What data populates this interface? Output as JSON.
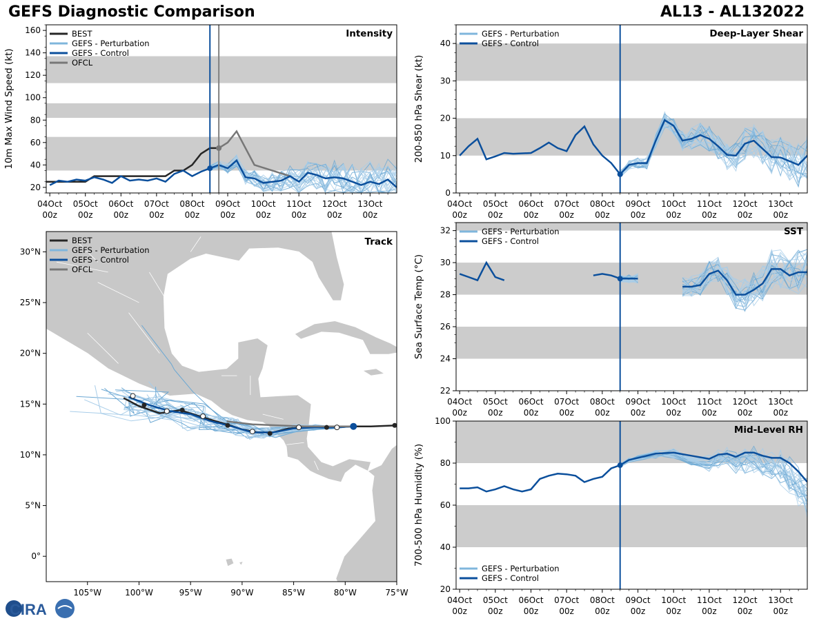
{
  "header": {
    "title": "GEFS Diagnostic Comparison",
    "storm_id": "AL13 - AL132022"
  },
  "logo": {
    "text": "CIRA"
  },
  "colors": {
    "best": "#262626",
    "perturbation": "#7fb6dc",
    "control": "#0b4f9c",
    "ofcl": "#777777",
    "band": "#cccccc",
    "land": "#c8c8c8",
    "vline_init": "#0b4f9c",
    "vline_ofcl": "#808080"
  },
  "time_axis": {
    "ticks": [
      "04Oct\n00z",
      "05Oct\n00z",
      "06Oct\n00z",
      "07Oct\n00z",
      "08Oct\n00z",
      "09Oct\n00z",
      "10Oct\n00z",
      "11Oct\n00z",
      "12Oct\n00z",
      "13Oct\n00z"
    ],
    "range_days": [
      -0.1,
      9.75
    ],
    "init_day": 4.5,
    "ofcl_day": 4.75
  },
  "chart_data": [
    {
      "id": "intensity",
      "type": "line",
      "title": "Intensity",
      "ylabel": "10m Max Wind Speed (kt)",
      "ylim": [
        15,
        165
      ],
      "yticks": [
        20,
        40,
        60,
        80,
        100,
        120,
        140,
        160
      ],
      "bands": [
        [
          35,
          65
        ],
        [
          82,
          95
        ],
        [
          113,
          137
        ]
      ],
      "legend": [
        "BEST",
        "GEFS - Perturbation",
        "GEFS - Control",
        "OFCL"
      ],
      "series": [
        {
          "name": "BEST",
          "x": [
            -0.1,
            0.5,
            1.0,
            1.25,
            1.5,
            2.0,
            2.5,
            3.0,
            3.25,
            3.5,
            3.75,
            4.0,
            4.25,
            4.5,
            4.75
          ],
          "y": [
            25,
            25,
            25,
            30,
            30,
            30,
            30,
            30,
            30,
            35,
            35,
            40,
            50,
            55,
            55
          ]
        },
        {
          "name": "OFCL",
          "x": [
            4.75,
            5.0,
            5.25,
            5.75,
            6.75
          ],
          "y": [
            55,
            60,
            70,
            40,
            30
          ]
        },
        {
          "name": "GEFS - Control",
          "x": [
            0.0,
            0.25,
            0.5,
            0.75,
            1.0,
            1.25,
            1.5,
            1.75,
            2.0,
            2.25,
            2.5,
            2.75,
            3.0,
            3.25,
            3.5,
            3.75,
            4.0,
            4.25,
            4.5,
            4.75,
            5.0,
            5.25,
            5.5,
            5.75,
            6.0,
            6.25,
            6.5,
            6.75,
            7.0,
            7.25,
            7.5,
            7.75,
            8.0,
            8.25,
            8.5,
            8.75,
            9.0,
            9.25,
            9.5,
            9.75
          ],
          "y": [
            22,
            26,
            25,
            27,
            26,
            29,
            27,
            24,
            30,
            26,
            27,
            26,
            28,
            25,
            32,
            35,
            30,
            34,
            37,
            40,
            37,
            44,
            29,
            28,
            24,
            25,
            26,
            30,
            25,
            33,
            31,
            28,
            29,
            28,
            25,
            22,
            25,
            23,
            27,
            20
          ]
        }
      ],
      "points": [
        {
          "series": "GEFS - Control",
          "x": 4.5,
          "y": 37
        },
        {
          "series": "OFCL",
          "x": 4.75,
          "y": 55
        }
      ]
    },
    {
      "id": "shear",
      "type": "line",
      "title": "Deep-Layer Shear",
      "ylabel": "200-850 hPa Shear (kt)",
      "ylim": [
        0,
        45
      ],
      "yticks": [
        0,
        10,
        20,
        30,
        40
      ],
      "bands": [
        [
          10,
          20
        ],
        [
          30,
          40
        ]
      ],
      "legend": [
        "GEFS - Perturbation",
        "GEFS - Control"
      ],
      "series": [
        {
          "name": "GEFS - Control",
          "x": [
            0.0,
            0.25,
            0.5,
            0.75,
            1.0,
            1.25,
            1.5,
            2.0,
            2.25,
            2.5,
            2.75,
            3.0,
            3.25,
            3.5,
            3.75,
            4.0,
            4.25,
            4.5,
            4.75,
            5.0,
            5.25,
            5.5,
            5.75,
            6.0,
            6.25,
            6.5,
            6.75,
            7.0,
            7.25,
            7.5,
            7.75,
            8.0,
            8.25,
            8.5,
            8.75,
            9.0,
            9.25,
            9.5,
            9.75
          ],
          "y": [
            10,
            12.5,
            14.5,
            9,
            9.8,
            10.7,
            10.5,
            10.7,
            12,
            13.5,
            12,
            11.2,
            15.5,
            17.8,
            13,
            10,
            8,
            5,
            7.5,
            8,
            8,
            14,
            19.5,
            18,
            14,
            14.5,
            15.5,
            14.5,
            12.5,
            10.2,
            10,
            13.2,
            14,
            11.8,
            9.6,
            9.5,
            8.5,
            7.5,
            10
          ]
        }
      ],
      "points": [
        {
          "series": "GEFS - Control",
          "x": 4.5,
          "y": 5
        }
      ]
    },
    {
      "id": "sst",
      "type": "line",
      "title": "SST",
      "ylabel": "Sea Surface Temp (°C)",
      "ylim": [
        22,
        32.5
      ],
      "yticks": [
        22,
        24,
        26,
        28,
        30,
        32
      ],
      "bands": [
        [
          24,
          26
        ],
        [
          28,
          30
        ],
        [
          32,
          32.5
        ]
      ],
      "legend": [
        "GEFS - Perturbation",
        "GEFS - Control"
      ],
      "series": [
        {
          "name": "GEFS - Control A",
          "x": [
            0.0,
            0.25,
            0.5,
            0.75,
            1.0,
            1.25
          ],
          "y": [
            29.3,
            29.1,
            28.9,
            30.0,
            29.1,
            28.9
          ]
        },
        {
          "name": "GEFS - Control B",
          "x": [
            3.75,
            4.0,
            4.25,
            4.5,
            4.75,
            5.0
          ],
          "y": [
            29.2,
            29.3,
            29.2,
            29.0,
            29.0,
            29.0
          ]
        },
        {
          "name": "GEFS - Control C",
          "x": [
            6.25,
            6.5,
            6.75,
            7.0,
            7.25,
            7.5,
            7.75,
            8.0,
            8.25,
            8.5,
            8.75,
            9.0,
            9.25,
            9.5,
            9.75
          ],
          "y": [
            28.5,
            28.5,
            28.6,
            29.3,
            29.5,
            28.9,
            28.0,
            28.0,
            28.3,
            28.7,
            29.6,
            29.6,
            29.2,
            29.4,
            29.4
          ]
        }
      ],
      "points": [
        {
          "series": "GEFS - Control",
          "x": 4.5,
          "y": 29.0
        }
      ]
    },
    {
      "id": "rh",
      "type": "line",
      "title": "Mid-Level RH",
      "ylabel": "700-500 hPa Humidity (%)",
      "ylim": [
        20,
        100
      ],
      "yticks": [
        20,
        40,
        60,
        80,
        100
      ],
      "bands": [
        [
          40,
          60
        ],
        [
          80,
          100
        ]
      ],
      "legend": [
        "GEFS - Perturbation",
        "GEFS - Control"
      ],
      "series": [
        {
          "name": "GEFS - Control",
          "x": [
            0.0,
            0.25,
            0.5,
            0.75,
            1.0,
            1.25,
            1.5,
            1.75,
            2.0,
            2.25,
            2.5,
            2.75,
            3.0,
            3.25,
            3.5,
            3.75,
            4.0,
            4.25,
            4.5,
            4.75,
            5.0,
            5.5,
            6.0,
            6.5,
            7.0,
            7.25,
            7.5,
            7.75,
            8.0,
            8.25,
            8.5,
            8.75,
            9.0,
            9.25,
            9.5,
            9.75
          ],
          "y": [
            68,
            68,
            68.5,
            66.5,
            67.5,
            69,
            67.5,
            66.5,
            67.5,
            72.5,
            74,
            75,
            74.7,
            74,
            71,
            72.5,
            73.5,
            77.5,
            79,
            81.5,
            82.5,
            84.5,
            85,
            83.5,
            82,
            84,
            84.5,
            83,
            85,
            85,
            83.5,
            82.5,
            82.5,
            80,
            76,
            71
          ]
        }
      ],
      "points": [
        {
          "series": "GEFS - Control",
          "x": 4.5,
          "y": 79
        }
      ]
    },
    {
      "id": "track",
      "type": "scatter",
      "title": "Track",
      "xlim": [
        -109,
        -75
      ],
      "ylim": [
        -2.5,
        32
      ],
      "xticks": [
        -105,
        -100,
        -95,
        -90,
        -85,
        -80,
        -75
      ],
      "xtick_labels": [
        "105°W",
        "100°W",
        "95°W",
        "90°W",
        "85°W",
        "80°W",
        "75°W"
      ],
      "yticks": [
        0,
        5,
        10,
        15,
        20,
        25,
        30
      ],
      "ytick_labels": [
        "0°",
        "5°N",
        "10°N",
        "15°N",
        "20°N",
        "25°N",
        "30°N"
      ],
      "legend": [
        "BEST",
        "GEFS - Perturbation",
        "GEFS - Control",
        "OFCL"
      ],
      "series": [
        {
          "name": "BEST",
          "lon": [
            -75.0,
            -77.5,
            -79.2,
            -81.5,
            -84.0,
            -85.5,
            -87.0,
            -88.5,
            -90.0,
            -91.5,
            -93.5,
            -96,
            -98,
            -100,
            -101.5
          ],
          "lat": [
            12.9,
            12.8,
            12.8,
            12.7,
            12.7,
            12.6,
            12.2,
            12.2,
            12.5,
            13.0,
            13.6,
            14.4,
            14.1,
            14.8,
            15.6
          ]
        },
        {
          "name": "GEFS - Control",
          "lon": [
            -79.2,
            -81,
            -83,
            -85,
            -87,
            -89,
            -91,
            -93,
            -95,
            -97,
            -99,
            -101
          ],
          "lat": [
            12.8,
            12.7,
            12.7,
            12.6,
            12.2,
            12.2,
            12.8,
            13.3,
            14.0,
            14.3,
            14.9,
            15.7
          ]
        },
        {
          "name": "OFCL",
          "lon": [
            -79.2,
            -81.5,
            -84,
            -86.5,
            -89,
            -91.5
          ],
          "lat": [
            12.8,
            12.8,
            12.8,
            12.9,
            13.0,
            13.3
          ]
        }
      ],
      "markers_filled": [
        [
          -75.2,
          12.9
        ],
        [
          -81.8,
          12.7
        ],
        [
          -87.3,
          12.1
        ],
        [
          -91.4,
          12.9
        ],
        [
          -95.8,
          14.4
        ],
        [
          -99.5,
          14.9
        ]
      ],
      "markers_open": [
        [
          -80.8,
          12.7
        ],
        [
          -84.5,
          12.7
        ],
        [
          -89.0,
          12.3
        ],
        [
          -93.8,
          13.8
        ],
        [
          -97.3,
          14.3
        ],
        [
          -100.6,
          15.8
        ]
      ]
    }
  ]
}
